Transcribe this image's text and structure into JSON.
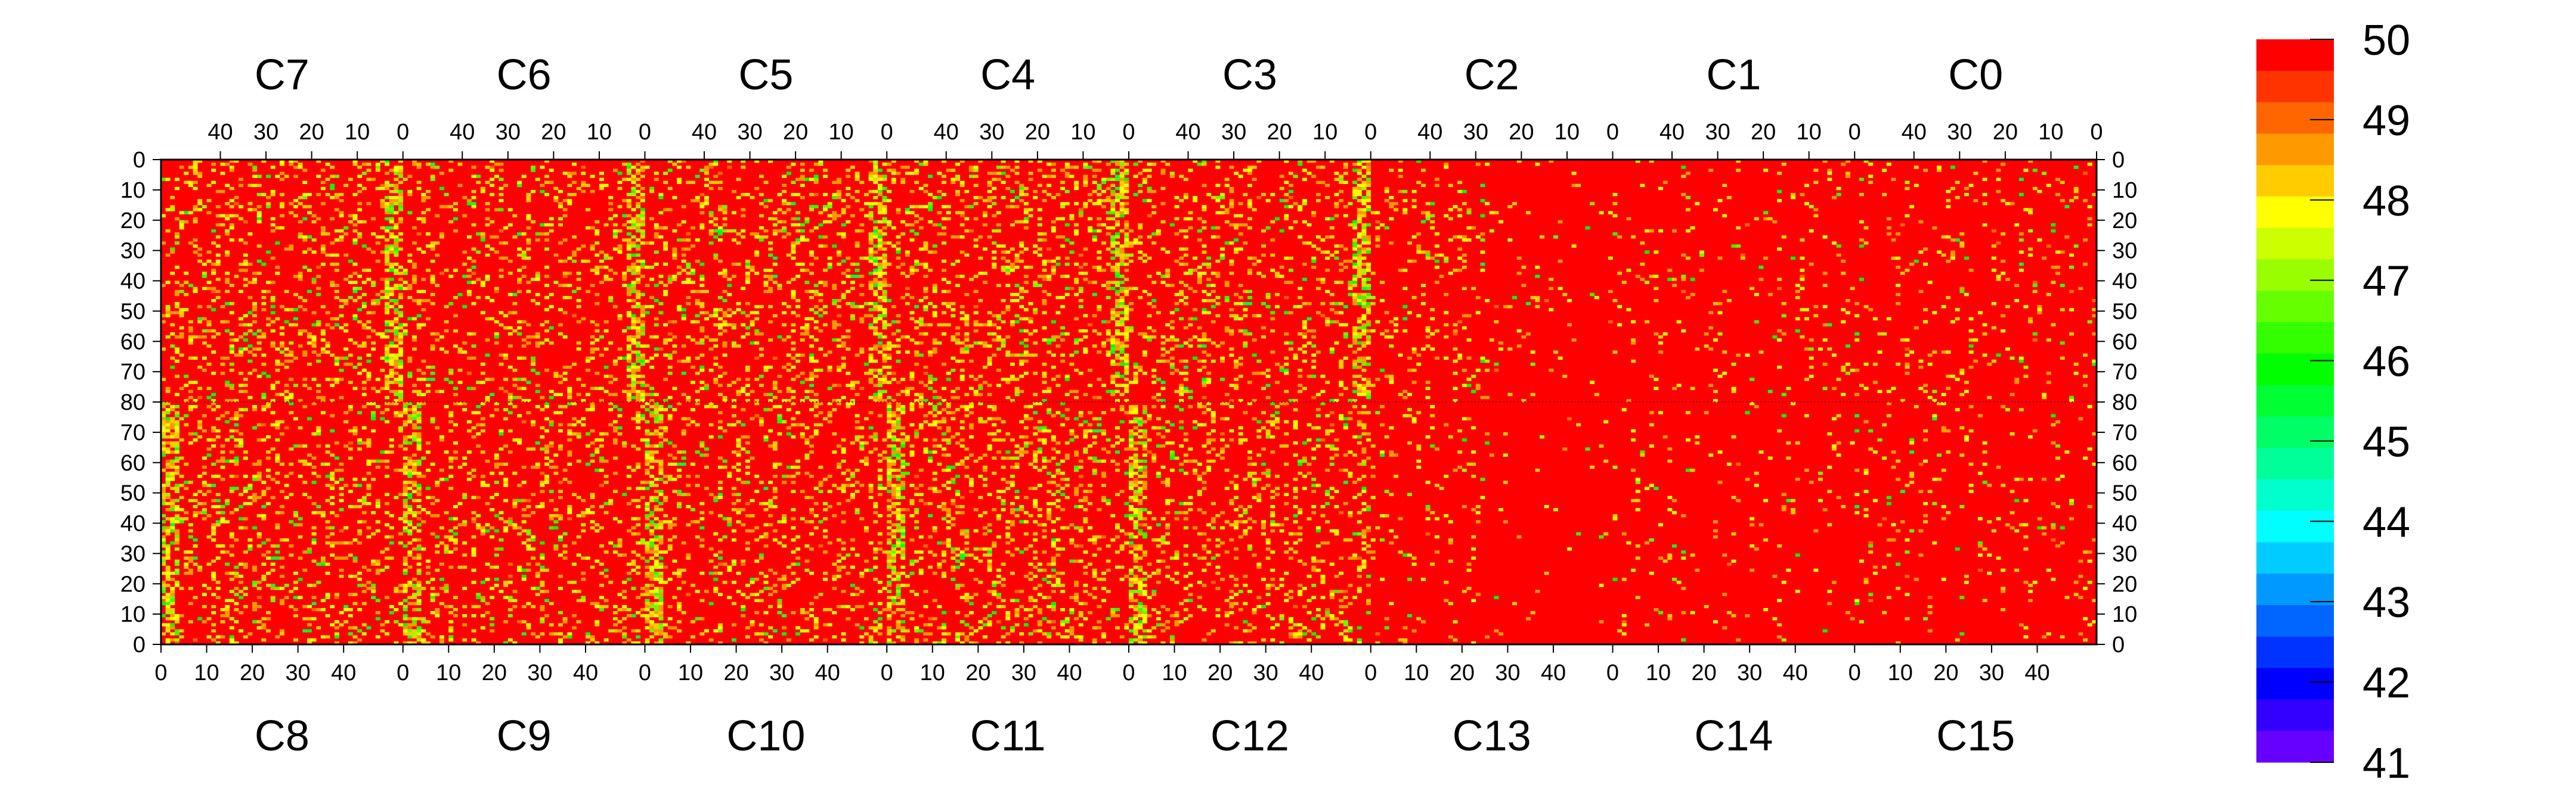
{
  "chart_data": {
    "type": "heatmap",
    "title": "",
    "top_channels": [
      "C7",
      "C6",
      "C5",
      "C4",
      "C3",
      "C2",
      "C1",
      "C0"
    ],
    "bottom_channels": [
      "C8",
      "C9",
      "C10",
      "C11",
      "C12",
      "C13",
      "C14",
      "C15"
    ],
    "top_x_ticks": [
      "40",
      "30",
      "20",
      "10",
      "0"
    ],
    "bottom_x_ticks": [
      "0",
      "10",
      "20",
      "30",
      "40"
    ],
    "x_per_channel": [
      0,
      53
    ],
    "y_ticks_upper": [
      "0",
      "10",
      "20",
      "30",
      "40",
      "50",
      "60",
      "70",
      "80"
    ],
    "y_ticks_lower": [
      "70",
      "60",
      "50",
      "40",
      "30",
      "20",
      "10",
      "0"
    ],
    "y_range_upper": [
      0,
      80
    ],
    "y_range_lower": [
      80,
      0
    ],
    "colorbar": {
      "ticks": [
        "50",
        "49",
        "48",
        "47",
        "46",
        "45",
        "44",
        "43",
        "42",
        "41"
      ],
      "range": [
        41,
        50
      ],
      "colors": [
        "#ff0000",
        "#ff3300",
        "#ff6600",
        "#ff9900",
        "#ffcc00",
        "#ffff00",
        "#ccff00",
        "#99ff00",
        "#66ff00",
        "#33ff00",
        "#00ff00",
        "#00ff33",
        "#00ff66",
        "#00ff99",
        "#00ffcc",
        "#00ffff",
        "#00ccff",
        "#0099ff",
        "#0066ff",
        "#0033ff",
        "#0000ff",
        "#3300ff",
        "#6600ff"
      ]
    },
    "background_value": 50,
    "hot_columns": {
      "description_free": true,
      "strong_band_columns_top": [
        0,
        1,
        2,
        3,
        4
      ],
      "channels_with_fluctuations": [
        "C7",
        "C6",
        "C5",
        "C4",
        "C3",
        "C2",
        "C8",
        "C9",
        "C10",
        "C11",
        "C12"
      ]
    },
    "grid": false
  }
}
